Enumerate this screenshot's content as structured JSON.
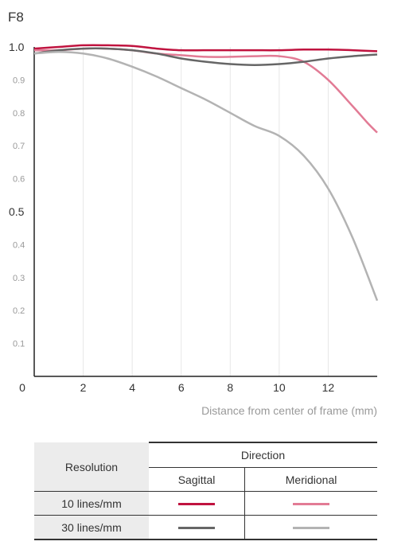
{
  "aperture": "F8",
  "chart_data": {
    "type": "line",
    "xlabel": "Distance from center of frame (mm)",
    "ylabel": "",
    "xlim": [
      0,
      14
    ],
    "ylim": [
      0,
      1.0
    ],
    "x_ticks": [
      "0",
      "2",
      "4",
      "6",
      "8",
      "10",
      "12"
    ],
    "y_ticks": [
      "0.1",
      "0.2",
      "0.3",
      "0.4",
      "0.5",
      "0.6",
      "0.7",
      "0.8",
      "0.9",
      "1.0"
    ],
    "grid": "vertical",
    "series": [
      {
        "key": "s10",
        "color": "#c0133f",
        "x": [
          0,
          1,
          2,
          3,
          4,
          5,
          6,
          7,
          8,
          9,
          10,
          11,
          12,
          13,
          14
        ],
        "y": [
          0.995,
          1.0,
          1.005,
          1.005,
          1.003,
          0.995,
          0.99,
          0.99,
          0.99,
          0.99,
          0.99,
          0.992,
          0.992,
          0.99,
          0.987
        ]
      },
      {
        "key": "m10",
        "color": "#e27b95",
        "x": [
          0,
          1,
          2,
          3,
          4,
          5,
          6,
          7,
          8,
          9,
          10,
          11,
          12,
          13,
          13.6,
          14
        ],
        "y": [
          0.99,
          0.99,
          0.995,
          0.995,
          0.99,
          0.98,
          0.975,
          0.97,
          0.97,
          0.972,
          0.972,
          0.955,
          0.9,
          0.82,
          0.77,
          0.74
        ]
      },
      {
        "key": "s30",
        "color": "#666666",
        "x": [
          0,
          1,
          2,
          3,
          4,
          5,
          6,
          7,
          8,
          9,
          10,
          11,
          12,
          13,
          14
        ],
        "y": [
          0.98,
          0.99,
          0.995,
          0.995,
          0.99,
          0.98,
          0.965,
          0.955,
          0.948,
          0.945,
          0.948,
          0.955,
          0.965,
          0.972,
          0.977
        ]
      },
      {
        "key": "m30",
        "color": "#b3b3b3",
        "x": [
          0,
          1,
          2,
          3,
          4,
          5,
          6,
          7,
          8,
          9,
          10,
          11,
          12,
          13,
          14
        ],
        "y": [
          0.98,
          0.985,
          0.98,
          0.965,
          0.94,
          0.91,
          0.875,
          0.84,
          0.8,
          0.76,
          0.73,
          0.67,
          0.57,
          0.42,
          0.23
        ]
      }
    ]
  },
  "legend": {
    "resolution_header": "Resolution",
    "direction_header": "Direction",
    "sagittal": "Sagittal",
    "meridional": "Meridional",
    "row_10": "10 lines/mm",
    "row_30": "30 lines/mm",
    "colors": {
      "s10": "#c0133f",
      "m10": "#e27b95",
      "s30": "#666666",
      "m30": "#b3b3b3"
    }
  }
}
